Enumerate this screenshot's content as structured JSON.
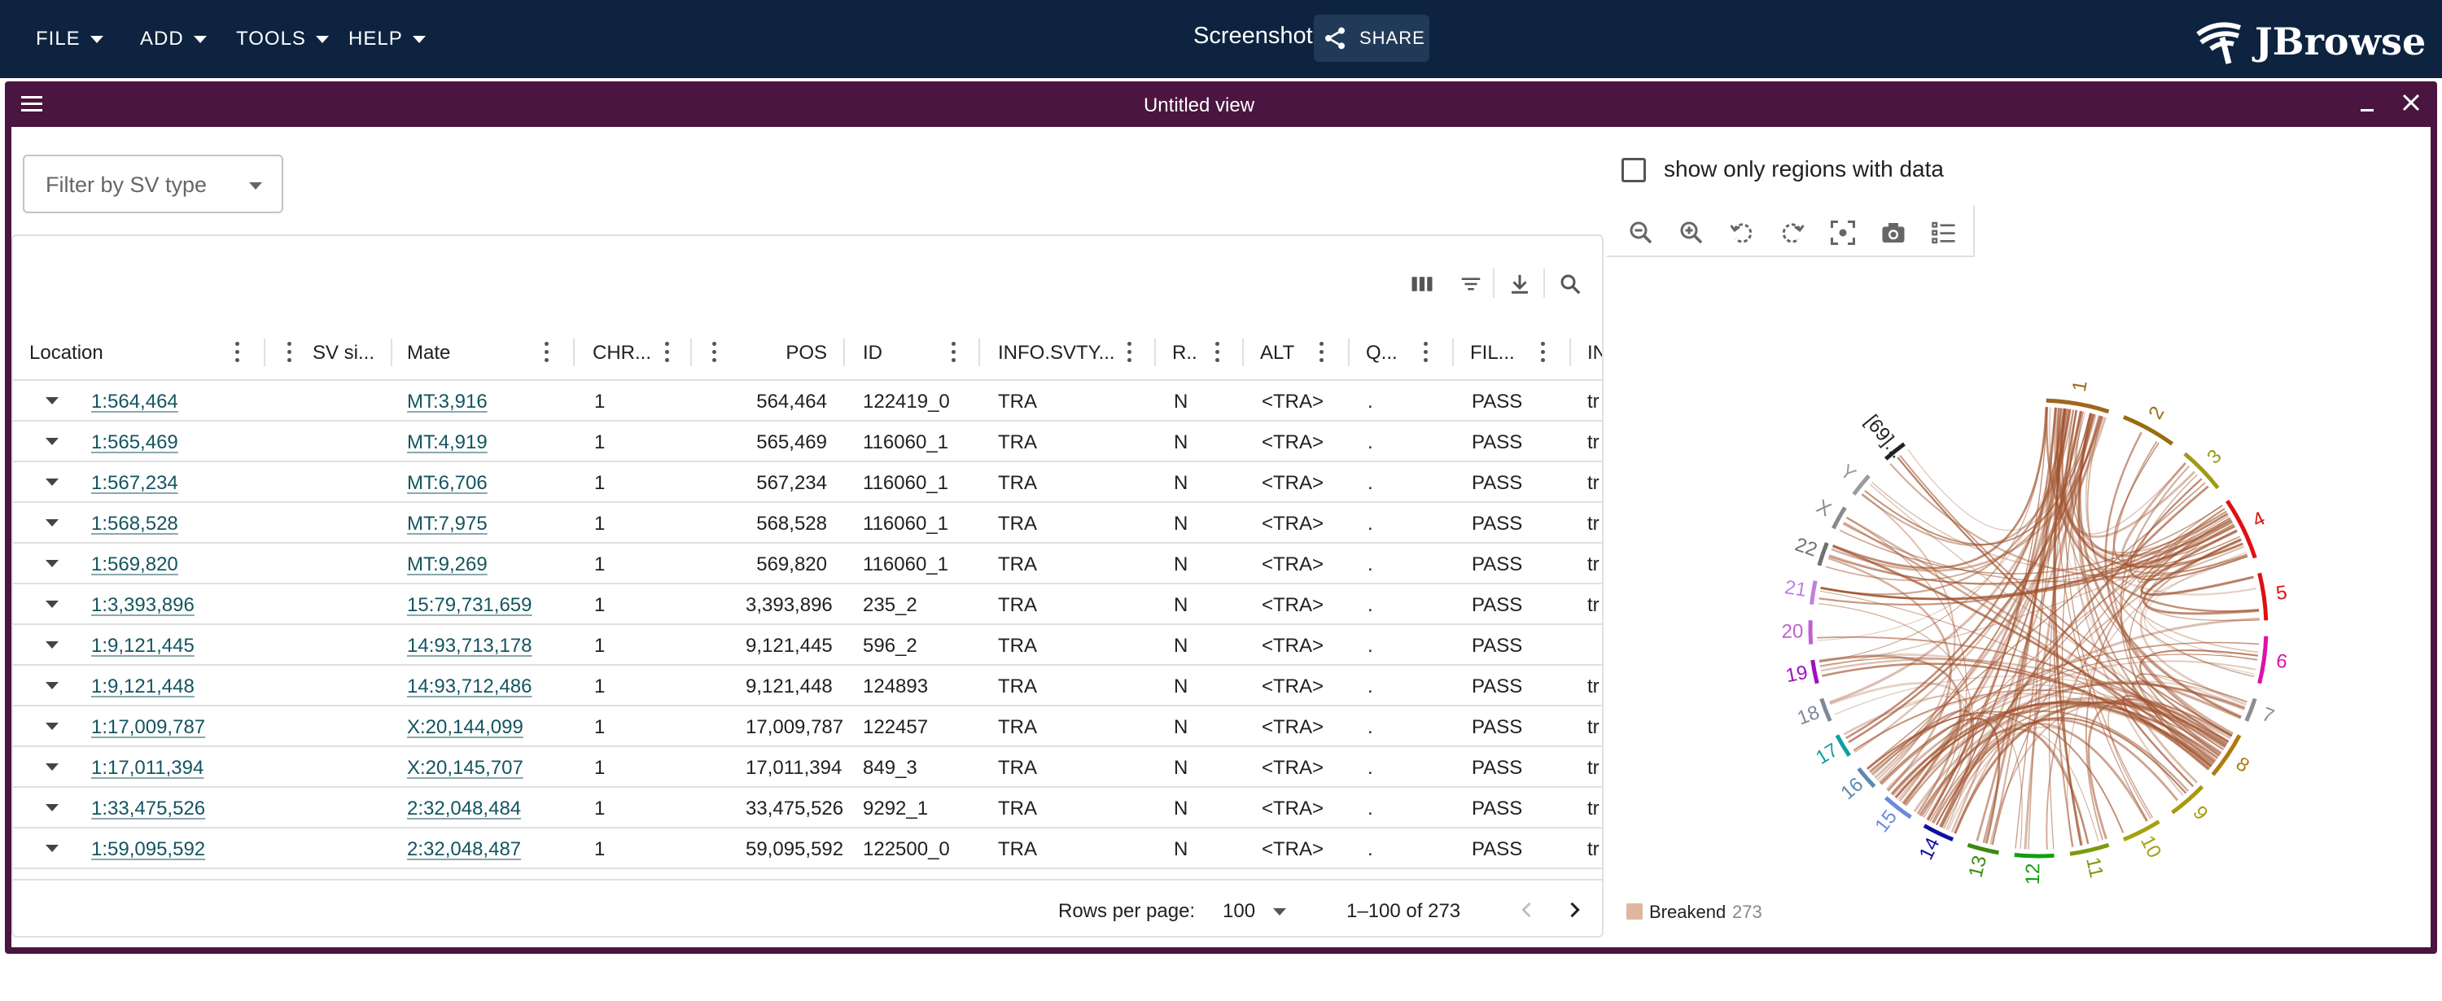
{
  "appbar": {
    "menus": [
      {
        "label": "FILE"
      },
      {
        "label": "ADD"
      },
      {
        "label": "TOOLS"
      },
      {
        "label": "HELP"
      }
    ],
    "session_name": "Screenshot",
    "share_label": "SHARE",
    "logo_text": "JBrowse"
  },
  "view": {
    "title": "Untitled view"
  },
  "filter": {
    "placeholder": "Filter by SV type"
  },
  "table": {
    "columns": [
      "Location",
      "SV si...",
      "Mate",
      "CHR...",
      "",
      "POS",
      "ID",
      "INFO.SVTY...",
      "R..",
      "ALT",
      "Q...",
      "FIL...",
      "IN"
    ],
    "rows": [
      {
        "location": "1:564,464",
        "mate": "MT:3,916",
        "chr": "1",
        "pos": "564,464",
        "id": "122419_0",
        "svtype": "TRA",
        "ref": "N",
        "alt": "<TRA>",
        "qual": ".",
        "filter": "PASS",
        "info": "tr"
      },
      {
        "location": "1:565,469",
        "mate": "MT:4,919",
        "chr": "1",
        "pos": "565,469",
        "id": "116060_1",
        "svtype": "TRA",
        "ref": "N",
        "alt": "<TRA>",
        "qual": ".",
        "filter": "PASS",
        "info": "tr"
      },
      {
        "location": "1:567,234",
        "mate": "MT:6,706",
        "chr": "1",
        "pos": "567,234",
        "id": "116060_1",
        "svtype": "TRA",
        "ref": "N",
        "alt": "<TRA>",
        "qual": ".",
        "filter": "PASS",
        "info": "tr"
      },
      {
        "location": "1:568,528",
        "mate": "MT:7,975",
        "chr": "1",
        "pos": "568,528",
        "id": "116060_1",
        "svtype": "TRA",
        "ref": "N",
        "alt": "<TRA>",
        "qual": ".",
        "filter": "PASS",
        "info": "tr"
      },
      {
        "location": "1:569,820",
        "mate": "MT:9,269",
        "chr": "1",
        "pos": "569,820",
        "id": "116060_1",
        "svtype": "TRA",
        "ref": "N",
        "alt": "<TRA>",
        "qual": ".",
        "filter": "PASS",
        "info": "tr"
      },
      {
        "location": "1:3,393,896",
        "mate": "15:79,731,659",
        "chr": "1",
        "pos": "3,393,896",
        "id": "235_2",
        "svtype": "TRA",
        "ref": "N",
        "alt": "<TRA>",
        "qual": ".",
        "filter": "PASS",
        "info": "tr"
      },
      {
        "location": "1:9,121,445",
        "mate": "14:93,713,178",
        "chr": "1",
        "pos": "9,121,445",
        "id": "596_2",
        "svtype": "TRA",
        "ref": "N",
        "alt": "<TRA>",
        "qual": ".",
        "filter": "PASS",
        "info": ""
      },
      {
        "location": "1:9,121,448",
        "mate": "14:93,712,486",
        "chr": "1",
        "pos": "9,121,448",
        "id": "124893",
        "svtype": "TRA",
        "ref": "N",
        "alt": "<TRA>",
        "qual": ".",
        "filter": "PASS",
        "info": "tr"
      },
      {
        "location": "1:17,009,787",
        "mate": "X:20,144,099",
        "chr": "1",
        "pos": "17,009,787",
        "id": "122457",
        "svtype": "TRA",
        "ref": "N",
        "alt": "<TRA>",
        "qual": ".",
        "filter": "PASS",
        "info": "tr"
      },
      {
        "location": "1:17,011,394",
        "mate": "X:20,145,707",
        "chr": "1",
        "pos": "17,011,394",
        "id": "849_3",
        "svtype": "TRA",
        "ref": "N",
        "alt": "<TRA>",
        "qual": ".",
        "filter": "PASS",
        "info": "tr"
      },
      {
        "location": "1:33,475,526",
        "mate": "2:32,048,484",
        "chr": "1",
        "pos": "33,475,526",
        "id": "9292_1",
        "svtype": "TRA",
        "ref": "N",
        "alt": "<TRA>",
        "qual": ".",
        "filter": "PASS",
        "info": "tr"
      },
      {
        "location": "1:59,095,592",
        "mate": "2:32,048,487",
        "chr": "1",
        "pos": "59,095,592",
        "id": "122500_0",
        "svtype": "TRA",
        "ref": "N",
        "alt": "<TRA>",
        "qual": ".",
        "filter": "PASS",
        "info": "tr"
      }
    ]
  },
  "pagination": {
    "rows_per_page_label": "Rows per page:",
    "rows_per_page_value": "100",
    "range_label": "1–100 of 273"
  },
  "circular": {
    "show_only_label": "show only regions with data",
    "show_only_checked": false,
    "legend_label": "Breakend",
    "legend_count": "273",
    "chromosomes": [
      {
        "name": "1",
        "color": "#a0661e"
      },
      {
        "name": "2",
        "color": "#9a6c0f"
      },
      {
        "name": "3",
        "color": "#9e9a1a"
      },
      {
        "name": "4",
        "color": "#e01010"
      },
      {
        "name": "5",
        "color": "#e01010"
      },
      {
        "name": "6",
        "color": "#e010a8"
      },
      {
        "name": "7",
        "color": "#8e8e8e"
      },
      {
        "name": "8",
        "color": "#b07a10"
      },
      {
        "name": "9",
        "color": "#a89a10"
      },
      {
        "name": "10",
        "color": "#a8a010"
      },
      {
        "name": "11",
        "color": "#7a9a10"
      },
      {
        "name": "12",
        "color": "#10a010"
      },
      {
        "name": "13",
        "color": "#3a8a10"
      },
      {
        "name": "14",
        "color": "#1010a0"
      },
      {
        "name": "15",
        "color": "#6a8ae0"
      },
      {
        "name": "16",
        "color": "#5a8ab0"
      },
      {
        "name": "17",
        "color": "#10a0a0"
      },
      {
        "name": "18",
        "color": "#7a8a9a"
      },
      {
        "name": "19",
        "color": "#a010c0"
      },
      {
        "name": "20",
        "color": "#c060d0"
      },
      {
        "name": "21",
        "color": "#c080e0"
      },
      {
        "name": "22",
        "color": "#707070"
      },
      {
        "name": "X",
        "color": "#8a8a8a"
      },
      {
        "name": "Y",
        "color": "#9a9a9a"
      },
      {
        "name": "[69]...",
        "color": "#222222"
      }
    ]
  }
}
